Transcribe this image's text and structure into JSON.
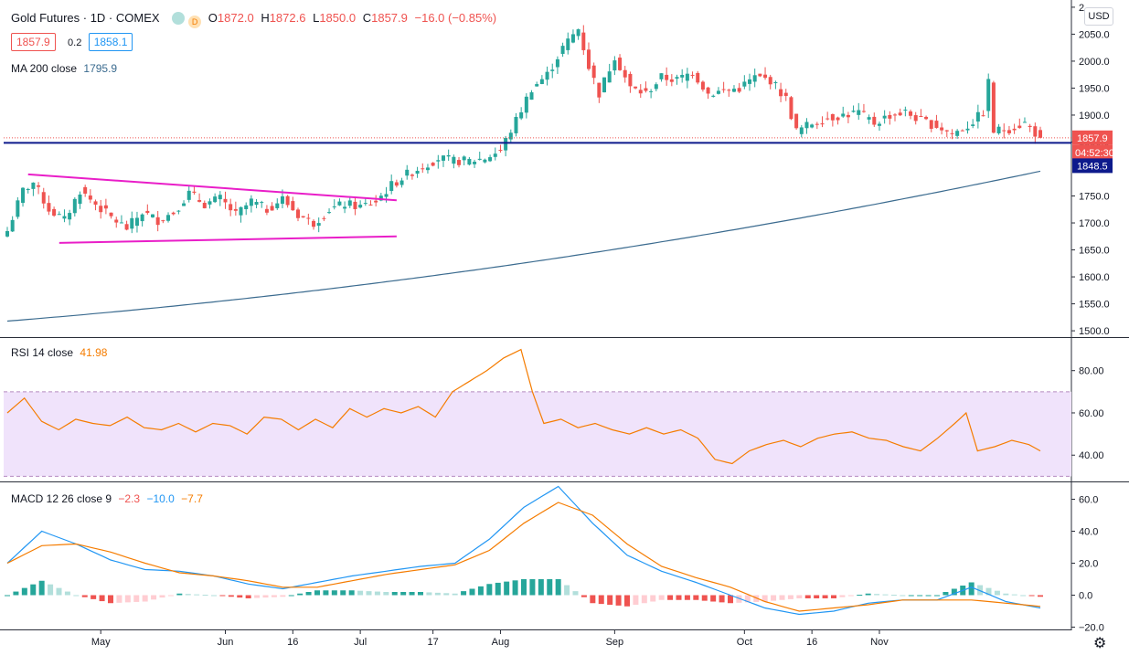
{
  "header": {
    "symbol_title": "Gold Futures · 1D · COMEX",
    "ohlc": {
      "o_label": "O",
      "o": "1872.0",
      "h_label": "H",
      "h": "1872.6",
      "l_label": "L",
      "l": "1850.0",
      "c_label": "C",
      "c": "1857.9",
      "change": "−16.0 (−0.85%)"
    },
    "sell_price": "1857.9",
    "spread": "0.2",
    "buy_price": "1858.1",
    "circle_icon_2": "D"
  },
  "ma_legend": {
    "label": "MA 200 close",
    "value": "1795.9"
  },
  "rsi_legend": {
    "label": "RSI 14 close",
    "value": "41.98"
  },
  "macd_legend": {
    "label": "MACD 12 26 close 9",
    "v1": "−2.3",
    "v2": "−10.0",
    "v3": "−7.7"
  },
  "currency_button": "USD",
  "price_axis_labels": [
    "2",
    "2050.0",
    "2000.0",
    "1950.0",
    "1900.0",
    "1850.0",
    "1750.0",
    "1700.0",
    "1650.0",
    "1600.0",
    "1550.0",
    "1500.0"
  ],
  "price_tags": {
    "last": "1857.9",
    "countdown": "04:52:30",
    "line": "1848.5"
  },
  "rsi_axis_labels": [
    "80.00",
    "60.00",
    "40.00"
  ],
  "macd_axis_labels": [
    "60.0",
    "40.0",
    "20.0",
    "0.0",
    "−20.0"
  ],
  "time_labels": [
    "May",
    "Jun",
    "16",
    "Jul",
    "17",
    "Aug",
    "Sep",
    "Oct",
    "16",
    "Nov"
  ],
  "colors": {
    "up": "#26a69a",
    "down": "#ef5350",
    "ma": "#3b6b8f",
    "trendline": "#e91ec8",
    "hline": "#0d1a8c",
    "rsi": "#f57c00",
    "macd": "#2196f3",
    "signal": "#f57c00",
    "rsi_band": "#f0e3fb"
  },
  "chart_data": [
    {
      "type": "candlestick",
      "title": "Gold Futures · 1D · COMEX",
      "ylim": [
        1490,
        2110
      ],
      "annotations": [
        "symmetrical triangle (two trendlines)",
        "horizontal line at 1848.5"
      ],
      "ma200": {
        "name": "MA 200 close",
        "start": 1518,
        "end": 1795.9
      },
      "anchors": [
        [
          0,
          1685
        ],
        [
          3,
          1760
        ],
        [
          5,
          1775
        ],
        [
          8,
          1725
        ],
        [
          11,
          1705
        ],
        [
          14,
          1760
        ],
        [
          17,
          1735
        ],
        [
          20,
          1710
        ],
        [
          23,
          1690
        ],
        [
          26,
          1720
        ],
        [
          29,
          1705
        ],
        [
          32,
          1720
        ],
        [
          35,
          1755
        ],
        [
          38,
          1735
        ],
        [
          41,
          1745
        ],
        [
          44,
          1715
        ],
        [
          47,
          1740
        ],
        [
          50,
          1725
        ],
        [
          53,
          1745
        ],
        [
          56,
          1715
        ],
        [
          59,
          1700
        ],
        [
          62,
          1725
        ],
        [
          65,
          1735
        ],
        [
          68,
          1730
        ],
        [
          71,
          1740
        ],
        [
          74,
          1770
        ],
        [
          77,
          1790
        ],
        [
          80,
          1805
        ],
        [
          83,
          1820
        ],
        [
          86,
          1815
        ],
        [
          89,
          1815
        ],
        [
          92,
          1820
        ],
        [
          95,
          1835
        ],
        [
          98,
          1890
        ],
        [
          101,
          1950
        ],
        [
          104,
          1975
        ],
        [
          107,
          2025
        ],
        [
          110,
          2060
        ],
        [
          112,
          1990
        ],
        [
          114,
          1940
        ],
        [
          117,
          2010
        ],
        [
          120,
          1950
        ],
        [
          123,
          1940
        ],
        [
          126,
          1970
        ],
        [
          129,
          1965
        ],
        [
          132,
          1980
        ],
        [
          135,
          1940
        ],
        [
          138,
          1945
        ],
        [
          141,
          1950
        ],
        [
          144,
          1970
        ],
        [
          147,
          1965
        ],
        [
          150,
          1930
        ],
        [
          152,
          1870
        ],
        [
          155,
          1885
        ],
        [
          158,
          1895
        ],
        [
          161,
          1900
        ],
        [
          164,
          1905
        ],
        [
          167,
          1885
        ],
        [
          170,
          1900
        ],
        [
          173,
          1905
        ],
        [
          176,
          1890
        ],
        [
          179,
          1880
        ],
        [
          182,
          1865
        ],
        [
          185,
          1880
        ],
        [
          188,
          1905
        ],
        [
          189,
          1960
        ],
        [
          190,
          1870
        ],
        [
          193,
          1875
        ],
        [
          196,
          1885
        ],
        [
          199,
          1857.9
        ]
      ]
    },
    {
      "type": "line",
      "name": "RSI 14 close",
      "ylim": [
        28,
        95
      ],
      "band": [
        30,
        70
      ],
      "anchors": [
        [
          0,
          60
        ],
        [
          3,
          67
        ],
        [
          6,
          56
        ],
        [
          9,
          52
        ],
        [
          12,
          57
        ],
        [
          15,
          55
        ],
        [
          18,
          54
        ],
        [
          21,
          58
        ],
        [
          24,
          53
        ],
        [
          27,
          52
        ],
        [
          30,
          55
        ],
        [
          33,
          51
        ],
        [
          36,
          55
        ],
        [
          39,
          54
        ],
        [
          42,
          50
        ],
        [
          45,
          58
        ],
        [
          48,
          57
        ],
        [
          51,
          52
        ],
        [
          54,
          57
        ],
        [
          57,
          53
        ],
        [
          60,
          62
        ],
        [
          63,
          58
        ],
        [
          66,
          62
        ],
        [
          69,
          60
        ],
        [
          72,
          63
        ],
        [
          75,
          58
        ],
        [
          78,
          70
        ],
        [
          81,
          75
        ],
        [
          84,
          80
        ],
        [
          87,
          86
        ],
        [
          90,
          90
        ],
        [
          92,
          70
        ],
        [
          94,
          55
        ],
        [
          97,
          57
        ],
        [
          100,
          53
        ],
        [
          103,
          55
        ],
        [
          106,
          52
        ],
        [
          109,
          50
        ],
        [
          112,
          53
        ],
        [
          115,
          50
        ],
        [
          118,
          52
        ],
        [
          121,
          48
        ],
        [
          124,
          38
        ],
        [
          127,
          36
        ],
        [
          130,
          42
        ],
        [
          133,
          45
        ],
        [
          136,
          47
        ],
        [
          139,
          44
        ],
        [
          142,
          48
        ],
        [
          145,
          50
        ],
        [
          148,
          51
        ],
        [
          151,
          48
        ],
        [
          154,
          47
        ],
        [
          157,
          44
        ],
        [
          160,
          42
        ],
        [
          163,
          48
        ],
        [
          166,
          55
        ],
        [
          168,
          60
        ],
        [
          170,
          42
        ],
        [
          173,
          44
        ],
        [
          176,
          47
        ],
        [
          179,
          45
        ],
        [
          181,
          42
        ]
      ]
    },
    {
      "type": "line",
      "name": "MACD 12 26 close 9",
      "ylim": [
        -22,
        70
      ],
      "macd_anchors": [
        [
          0,
          20
        ],
        [
          4,
          40
        ],
        [
          8,
          32
        ],
        [
          12,
          22
        ],
        [
          16,
          16
        ],
        [
          20,
          15
        ],
        [
          24,
          12
        ],
        [
          28,
          7
        ],
        [
          32,
          4
        ],
        [
          36,
          8
        ],
        [
          40,
          12
        ],
        [
          44,
          15
        ],
        [
          48,
          18
        ],
        [
          52,
          20
        ],
        [
          56,
          35
        ],
        [
          60,
          55
        ],
        [
          64,
          68
        ],
        [
          68,
          45
        ],
        [
          72,
          25
        ],
        [
          76,
          15
        ],
        [
          80,
          8
        ],
        [
          84,
          0
        ],
        [
          88,
          -8
        ],
        [
          92,
          -12
        ],
        [
          96,
          -10
        ],
        [
          100,
          -5
        ],
        [
          104,
          -3
        ],
        [
          108,
          -3
        ],
        [
          112,
          5
        ],
        [
          116,
          -4
        ],
        [
          120,
          -8
        ]
      ],
      "signal_anchors": [
        [
          0,
          20
        ],
        [
          4,
          31
        ],
        [
          8,
          32
        ],
        [
          12,
          27
        ],
        [
          16,
          20
        ],
        [
          20,
          14
        ],
        [
          24,
          12
        ],
        [
          28,
          9
        ],
        [
          32,
          5
        ],
        [
          36,
          5
        ],
        [
          40,
          9
        ],
        [
          44,
          13
        ],
        [
          48,
          16
        ],
        [
          52,
          19
        ],
        [
          56,
          28
        ],
        [
          60,
          45
        ],
        [
          64,
          58
        ],
        [
          68,
          50
        ],
        [
          72,
          32
        ],
        [
          76,
          18
        ],
        [
          80,
          11
        ],
        [
          84,
          5
        ],
        [
          88,
          -4
        ],
        [
          92,
          -10
        ],
        [
          96,
          -8
        ],
        [
          100,
          -6
        ],
        [
          104,
          -3
        ],
        [
          108,
          -3
        ],
        [
          112,
          -3
        ],
        [
          116,
          -5
        ],
        [
          120,
          -7
        ]
      ],
      "histogram_note": "MACD minus signal, green when positive, red/pink when negative"
    }
  ]
}
